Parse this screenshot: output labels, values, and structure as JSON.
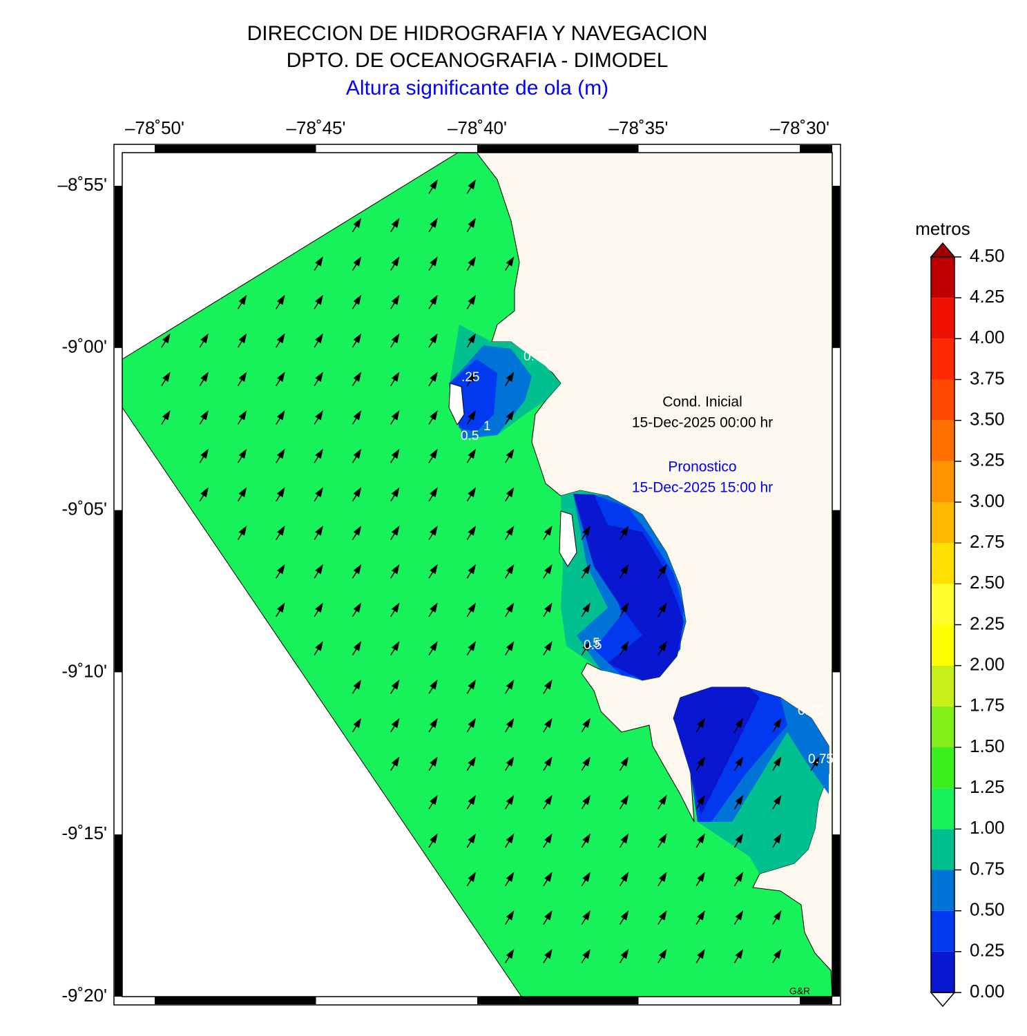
{
  "header": {
    "lines": [
      "DIRECCION DE HIDROGRAFIA Y NAVEGACION",
      "DPTO. DE OCEANOGRAFIA - DIMODEL",
      "Altura significante de ola (m)"
    ]
  },
  "map": {
    "lon_ticks": [
      "–78˚50'",
      "–78˚45'",
      "–78˚40'",
      "–78˚35'",
      "–78˚30'"
    ],
    "lat_ticks": [
      "–8˚55'",
      "-9˚00'",
      "-9˚05'",
      "-9˚10'",
      "-9˚15'",
      "-9˚20'"
    ],
    "annotations": {
      "initial_label": "Cond. Inicial",
      "initial_time": "15-Dec-2025 00:00 hr",
      "forecast_label": "Pronostico",
      "forecast_time": "15-Dec-2025 15:00 hr"
    },
    "contour_labels": [
      ".25",
      "0.5",
      "1",
      "0.75",
      "0.5",
      ".5",
      "0.75",
      "0.75"
    ],
    "credit": "G&R"
  },
  "colorbar": {
    "title": "metros",
    "ticks": [
      {
        "value": 0,
        "label": "0.00"
      },
      {
        "value": 0.25,
        "label": "0.25"
      },
      {
        "value": 0.5,
        "label": "0.50"
      },
      {
        "value": 0.75,
        "label": "0.75"
      },
      {
        "value": 1,
        "label": "1.00"
      },
      {
        "value": 1.25,
        "label": "1.25"
      },
      {
        "value": 1.5,
        "label": "1.50"
      },
      {
        "value": 1.75,
        "label": "1.75"
      },
      {
        "value": 2,
        "label": "2.00"
      },
      {
        "value": 2.25,
        "label": "2.25"
      },
      {
        "value": 2.5,
        "label": "2.50"
      },
      {
        "value": 2.75,
        "label": "2.75"
      },
      {
        "value": 3,
        "label": "3.00"
      },
      {
        "value": 3.25,
        "label": "3.25"
      },
      {
        "value": 3.5,
        "label": "3.50"
      },
      {
        "value": 3.75,
        "label": "3.75"
      },
      {
        "value": 4,
        "label": "4.00"
      },
      {
        "value": 4.25,
        "label": "4.25"
      },
      {
        "value": 4.5,
        "label": "4.50"
      }
    ],
    "colors": [
      "#0a17d0",
      "#0039f0",
      "#0073d6",
      "#00c090",
      "#17f25a",
      "#3cf020",
      "#80f018",
      "#c8f018",
      "#ffff00",
      "#ffff30",
      "#ffe000",
      "#ffb800",
      "#ff9400",
      "#ff7000",
      "#ff4800",
      "#ff2800",
      "#ee1000",
      "#c00000"
    ],
    "over_color": "#a00000",
    "under_color": "#ffffff"
  }
}
